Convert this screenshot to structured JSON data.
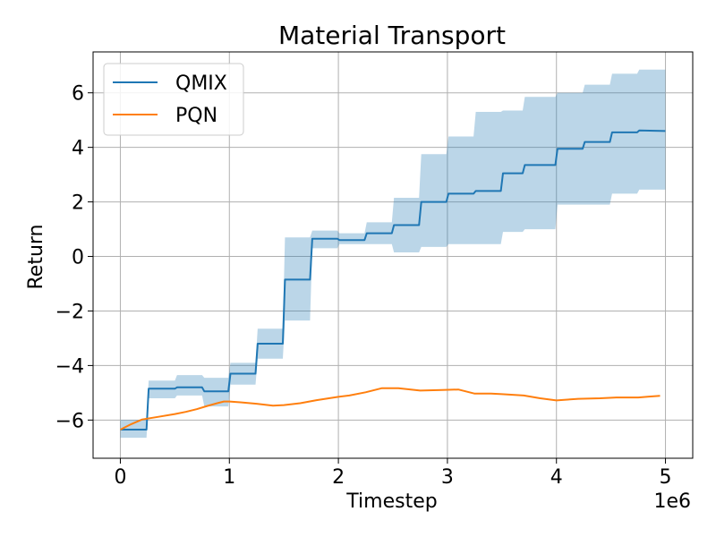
{
  "chart_data": {
    "type": "line",
    "title": "Material Transport",
    "xlabel": "Timestep",
    "ylabel": "Return",
    "x_multiplier_label": "1e6",
    "xlim": [
      -0.25,
      5.25
    ],
    "ylim": [
      -7.4,
      7.5
    ],
    "xticks": [
      0,
      1,
      2,
      3,
      4,
      5
    ],
    "xtick_labels": [
      "0",
      "1",
      "2",
      "3",
      "4",
      "5"
    ],
    "yticks": [
      -6,
      -4,
      -2,
      0,
      2,
      4,
      6
    ],
    "ytick_labels": [
      "−6",
      "−4",
      "−2",
      "0",
      "2",
      "4",
      "6"
    ],
    "grid": true,
    "legend_position": "upper left",
    "series": [
      {
        "name": "QMIX",
        "color": "#1f77b4",
        "band_color": "#1f77b4",
        "band_opacity": 0.3,
        "x": [
          0.0,
          0.24,
          0.26,
          0.5,
          0.52,
          0.75,
          0.77,
          0.99,
          1.01,
          1.24,
          1.26,
          1.49,
          1.51,
          1.74,
          1.76,
          1.99,
          2.01,
          2.24,
          2.26,
          2.49,
          2.51,
          2.74,
          2.76,
          2.99,
          3.01,
          3.24,
          3.26,
          3.49,
          3.51,
          3.69,
          3.71,
          3.99,
          4.01,
          4.24,
          4.26,
          4.49,
          4.51,
          4.74,
          4.76,
          5.0
        ],
        "y": [
          -6.35,
          -6.35,
          -4.85,
          -4.85,
          -4.8,
          -4.8,
          -4.95,
          -4.95,
          -4.3,
          -4.3,
          -3.2,
          -3.2,
          -0.85,
          -0.85,
          0.65,
          0.65,
          0.6,
          0.6,
          0.85,
          0.85,
          1.15,
          1.15,
          2.0,
          2.0,
          2.3,
          2.3,
          2.4,
          2.4,
          3.05,
          3.05,
          3.35,
          3.35,
          3.95,
          3.95,
          4.2,
          4.2,
          4.55,
          4.55,
          4.62,
          4.6
        ],
        "lower": [
          -6.65,
          -6.65,
          -5.2,
          -5.2,
          -5.1,
          -5.1,
          -5.5,
          -5.5,
          -4.7,
          -4.7,
          -3.75,
          -3.75,
          -2.35,
          -2.35,
          0.3,
          0.3,
          0.45,
          0.45,
          0.45,
          0.45,
          0.15,
          0.15,
          0.35,
          0.35,
          0.45,
          0.45,
          0.45,
          0.45,
          0.9,
          0.9,
          1.0,
          1.0,
          1.9,
          1.9,
          1.9,
          1.9,
          2.3,
          2.3,
          2.45,
          2.45
        ],
        "upper": [
          -6.0,
          -6.0,
          -4.55,
          -4.55,
          -4.35,
          -4.35,
          -4.45,
          -4.45,
          -3.9,
          -3.9,
          -2.65,
          -2.65,
          0.7,
          0.7,
          0.95,
          0.95,
          0.85,
          0.85,
          1.25,
          1.25,
          2.15,
          2.15,
          3.75,
          3.75,
          4.4,
          4.4,
          5.3,
          5.3,
          5.35,
          5.35,
          5.85,
          5.85,
          6.0,
          6.0,
          6.3,
          6.3,
          6.7,
          6.7,
          6.85,
          6.85
        ]
      },
      {
        "name": "PQN",
        "color": "#ff7f0e",
        "x": [
          0.0,
          0.1,
          0.2,
          0.35,
          0.5,
          0.6,
          0.7,
          0.8,
          0.9,
          0.95,
          1.0,
          1.1,
          1.25,
          1.4,
          1.5,
          1.65,
          1.8,
          2.0,
          2.1,
          2.25,
          2.4,
          2.55,
          2.75,
          2.95,
          3.1,
          3.25,
          3.4,
          3.5,
          3.7,
          3.85,
          4.0,
          4.1,
          4.2,
          4.4,
          4.55,
          4.75,
          4.85,
          4.95
        ],
        "y": [
          -6.35,
          -6.15,
          -5.98,
          -5.88,
          -5.78,
          -5.7,
          -5.6,
          -5.48,
          -5.37,
          -5.32,
          -5.32,
          -5.35,
          -5.4,
          -5.47,
          -5.45,
          -5.38,
          -5.27,
          -5.15,
          -5.1,
          -4.98,
          -4.83,
          -4.83,
          -4.92,
          -4.9,
          -4.88,
          -5.03,
          -5.03,
          -5.05,
          -5.1,
          -5.2,
          -5.28,
          -5.25,
          -5.22,
          -5.2,
          -5.17,
          -5.17,
          -5.14,
          -5.11
        ]
      }
    ]
  }
}
